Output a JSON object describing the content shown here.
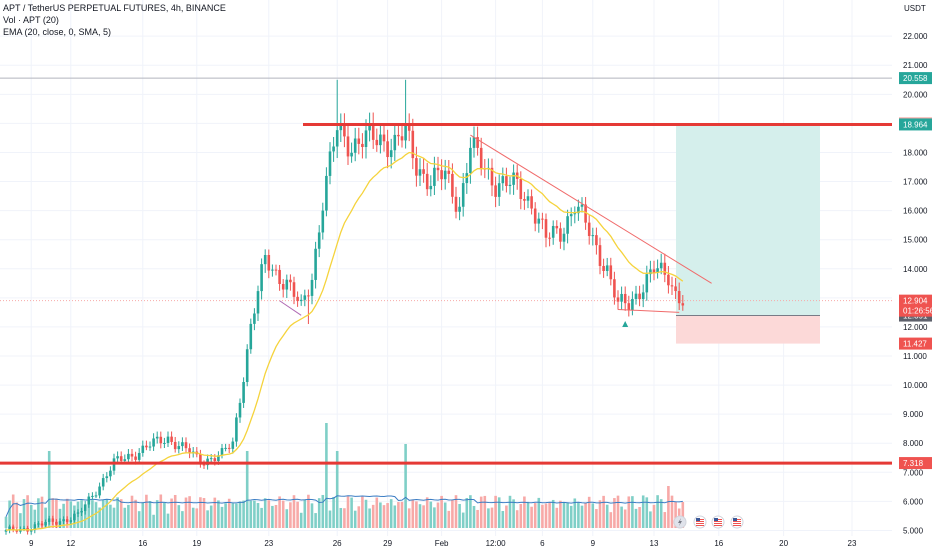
{
  "legend": {
    "symbol_line": "APT / TetherUS PERPETUAL FUTURES, 4h, BINANCE",
    "volume_line": "Vol · APT (20)",
    "ema_line": "EMA (20, close, 0, SMA, 5)"
  },
  "axis": {
    "currency": "USDT",
    "price_ticks": [
      "22.000",
      "21.000",
      "20.000",
      "19.000",
      "18.000",
      "17.000",
      "16.000",
      "15.000",
      "14.000",
      "13.000",
      "12.000",
      "11.000",
      "10.000",
      "9.000",
      "8.000",
      "7.000",
      "6.000",
      "5.000"
    ],
    "time_ticks": [
      "9",
      "12",
      "16",
      "19",
      "23",
      "26",
      "29",
      "Feb",
      "12:00",
      "6",
      "9",
      "13",
      "16",
      "20",
      "23"
    ]
  },
  "price_labels": {
    "upper_level": "20.558",
    "target_top": "19.002",
    "resistance": "18.964",
    "current_price": "12.904",
    "countdown": "01:26:56",
    "position_entry": "12.391",
    "stop_level": "11.427",
    "support": "7.318"
  },
  "colors": {
    "up": "#26a69a",
    "down": "#ef5350",
    "vol_up": "#7fcfc7",
    "vol_down": "#f7a9a7",
    "ema": "#f5d33c",
    "vol_ma": "#3b7dc4",
    "level_line": "#e53935",
    "trend_line": "#f06b6b",
    "profit_zone": "#d5efec",
    "loss_zone": "#fcd9d8",
    "grid": "#f0f3fa"
  },
  "events": {
    "icons": [
      "lightning-icon",
      "us-flag-icon",
      "us-flag-icon",
      "us-flag-icon"
    ]
  },
  "chart_data": {
    "type": "candlestick",
    "title": "APT / TetherUS PERPETUAL FUTURES, 4h, BINANCE",
    "timeframe": "4h",
    "y_unit": "USDT",
    "ylim": [
      4.5,
      22.9
    ],
    "x_tick_labels": [
      "9",
      "12",
      "16",
      "19",
      "23",
      "26",
      "29",
      "Feb",
      "12:00",
      "6",
      "9",
      "13",
      "16",
      "20",
      "23"
    ],
    "anchors": [
      {
        "bar": 0,
        "close": 4.95
      },
      {
        "bar": 10,
        "close": 5.2
      },
      {
        "bar": 20,
        "close": 5.5
      },
      {
        "bar": 30,
        "close": 7.3
      },
      {
        "bar": 38,
        "close": 7.8
      },
      {
        "bar": 45,
        "close": 8.2
      },
      {
        "bar": 54,
        "close": 7.4
      },
      {
        "bar": 60,
        "close": 7.6
      },
      {
        "bar": 63,
        "close": 8.0
      },
      {
        "bar": 68,
        "close": 12.0
      },
      {
        "bar": 72,
        "close": 14.3
      },
      {
        "bar": 78,
        "close": 13.5
      },
      {
        "bar": 82,
        "close": 12.6
      },
      {
        "bar": 85,
        "close": 13.8
      },
      {
        "bar": 88,
        "close": 16.3
      },
      {
        "bar": 92,
        "close": 18.8
      },
      {
        "bar": 96,
        "close": 18.3
      },
      {
        "bar": 104,
        "close": 18.5
      },
      {
        "bar": 108,
        "close": 18.3
      },
      {
        "bar": 111,
        "close": 18.6
      },
      {
        "bar": 114,
        "close": 17.6
      },
      {
        "bar": 118,
        "close": 17.0
      },
      {
        "bar": 122,
        "close": 17.2
      },
      {
        "bar": 126,
        "close": 16.2
      },
      {
        "bar": 129,
        "close": 18.2
      },
      {
        "bar": 132,
        "close": 17.6
      },
      {
        "bar": 136,
        "close": 17.0
      },
      {
        "bar": 142,
        "close": 16.8
      },
      {
        "bar": 146,
        "close": 16.3
      },
      {
        "bar": 150,
        "close": 15.0
      },
      {
        "bar": 154,
        "close": 15.3
      },
      {
        "bar": 158,
        "close": 16.2
      },
      {
        "bar": 163,
        "close": 15.0
      },
      {
        "bar": 167,
        "close": 14.0
      },
      {
        "bar": 170,
        "close": 12.7
      },
      {
        "bar": 173,
        "close": 12.8
      },
      {
        "bar": 176,
        "close": 13.3
      },
      {
        "bar": 180,
        "close": 13.9
      },
      {
        "bar": 184,
        "close": 13.8
      },
      {
        "bar": 186,
        "close": 13.2
      },
      {
        "bar": 188,
        "close": 12.9
      }
    ],
    "wicks": [
      {
        "bar": 92,
        "high": 20.5
      },
      {
        "bar": 111,
        "high": 20.5
      },
      {
        "bar": 84,
        "low": 12.1
      },
      {
        "bar": 174,
        "low": 12.4
      }
    ],
    "volume_spikes": [
      {
        "bar": 12,
        "rel": 0.55
      },
      {
        "bar": 67,
        "rel": 0.55
      },
      {
        "bar": 89,
        "rel": 0.75
      },
      {
        "bar": 92,
        "rel": 0.55
      },
      {
        "bar": 111,
        "rel": 0.6
      },
      {
        "bar": 184,
        "rel": 0.3
      }
    ],
    "levels": {
      "resistance": 18.964,
      "support": 7.318,
      "upper_level": 20.558
    },
    "position": {
      "entry": 12.391,
      "target": 19.002,
      "stop": 11.427
    },
    "trendline_top": [
      {
        "bar": 129,
        "price": 18.6
      },
      {
        "bar": 196,
        "price": 13.5
      }
    ],
    "trendline_bottom": [
      {
        "bar": 170,
        "price": 12.6
      },
      {
        "bar": 187,
        "price": 12.5
      }
    ],
    "current_price": 12.904
  }
}
